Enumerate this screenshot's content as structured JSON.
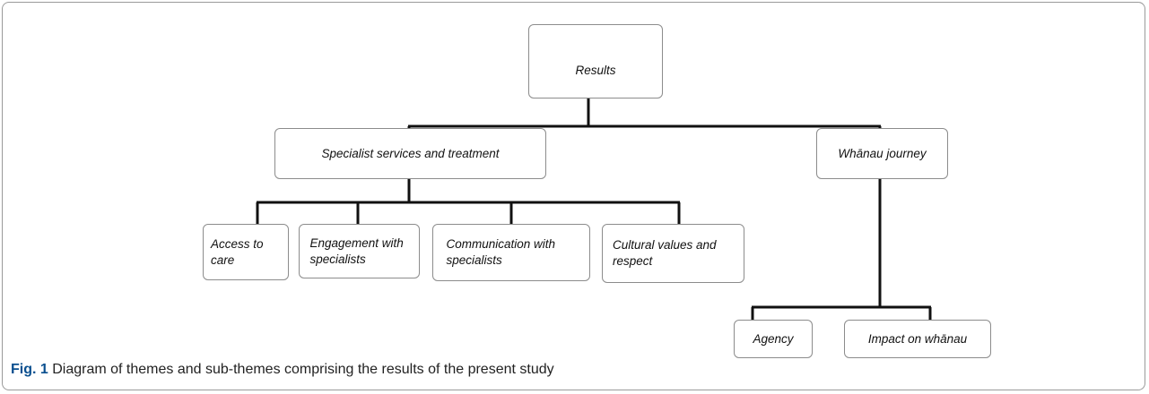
{
  "nodes": [
    {
      "label": "Results"
    },
    {
      "label": "Specialist services and treatment"
    },
    {
      "label": "Whānau journey"
    },
    {
      "label": "Access to care"
    },
    {
      "label": "Engagement with specialists"
    },
    {
      "label": "Communication with specialists"
    },
    {
      "label": "Cultural values and respect"
    },
    {
      "label": "Agency"
    },
    {
      "label": "Impact on whānau"
    }
  ],
  "caption": {
    "label": "Fig. 1",
    "text": "Diagram of themes and sub-themes comprising the results of the present study"
  }
}
